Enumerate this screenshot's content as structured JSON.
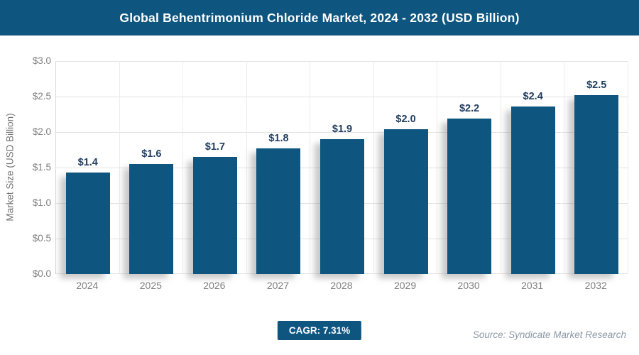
{
  "header": {
    "title": "Global Behentrimonium Chloride Market, 2024 - 2032 (USD Billion)",
    "bar_color": "#0e5580",
    "text_color": "#ffffff"
  },
  "chart_data": {
    "type": "bar",
    "title": "Global Behentrimonium Chloride Market, 2024 - 2032 (USD Billion)",
    "categories": [
      "2024",
      "2025",
      "2026",
      "2027",
      "2028",
      "2029",
      "2030",
      "2031",
      "2032"
    ],
    "values": [
      1.43,
      1.55,
      1.65,
      1.77,
      1.9,
      2.04,
      2.19,
      2.36,
      2.52
    ],
    "labels": [
      "$1.4",
      "$1.6",
      "$1.7",
      "$1.8",
      "$1.9",
      "$2.0",
      "$2.2",
      "$2.4",
      "$2.5"
    ],
    "xlabel": "",
    "ylabel": "Market Size (USD Billion)",
    "ylim": [
      0,
      3.0
    ],
    "ytick_step": 0.5,
    "ytick_labels": [
      "$0.0",
      "$0.5",
      "$1.0",
      "$1.5",
      "$2.0",
      "$2.5",
      "$3.0"
    ],
    "grid": true,
    "legend": "none",
    "bar_color": "#0e5580",
    "value_label_color": "#1f3c5f",
    "tick_color": "#7f7f7f"
  },
  "footer": {
    "cagr_label": "CAGR: 7.31%",
    "cagr_bg": "#0e5580",
    "source": "Source: Syndicate Market Research"
  }
}
